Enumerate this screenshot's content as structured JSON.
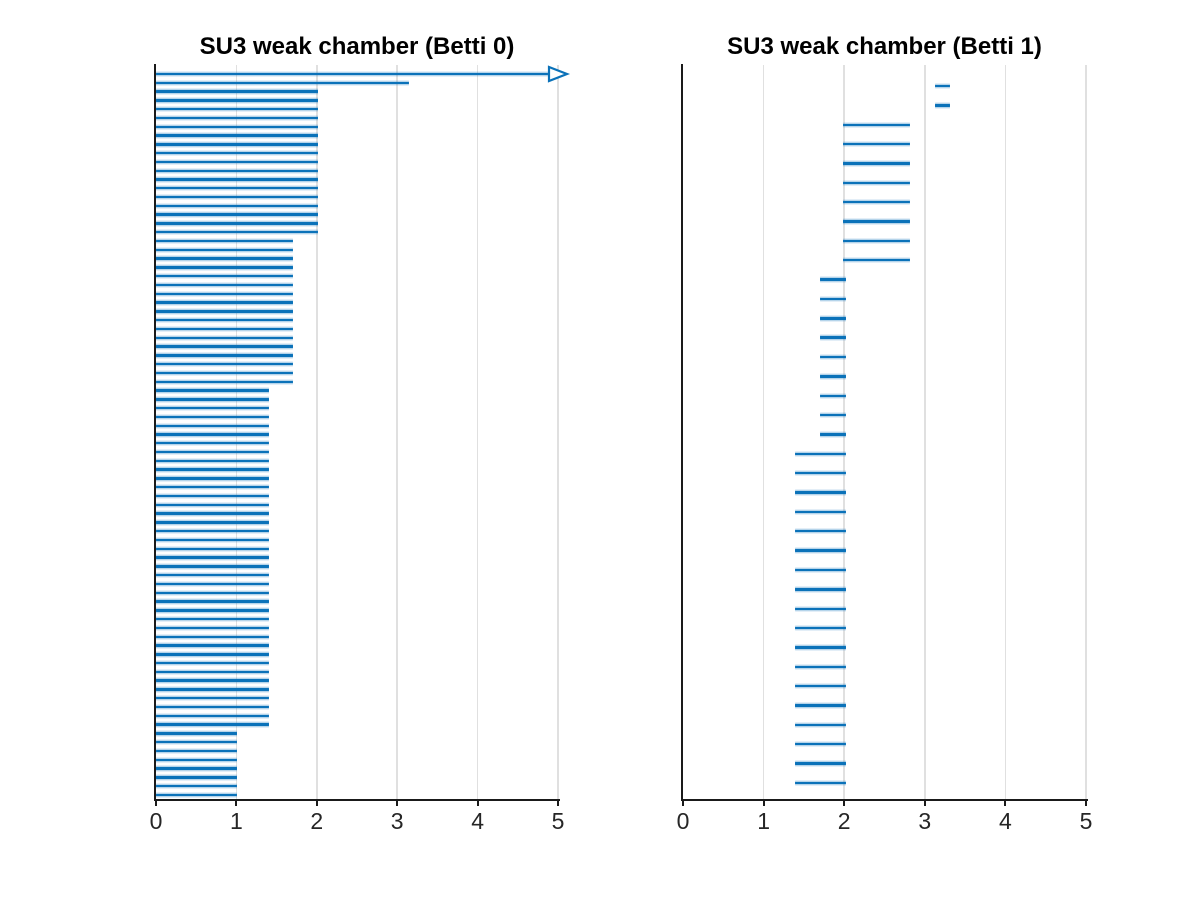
{
  "figure": {
    "background": "#ffffff",
    "bar_color": "#0b72b9",
    "bar_halo_color": "rgba(11,114,185,0.30)",
    "grid_color": "#e0e0e0",
    "axis_color": "#1a1a1a",
    "tick_label_color": "#262626",
    "title_color": "#000000"
  },
  "chart_data": [
    {
      "type": "bar",
      "subtype": "persistence-barcode",
      "title": "SU3 weak chamber (Betti 0)",
      "betti": 0,
      "xlim": [
        0,
        5
      ],
      "xticks": [
        "0",
        "1",
        "2",
        "3",
        "4",
        "5"
      ],
      "grid": true,
      "infinite_death_drawn_as": "open arrow past x=5",
      "bar_groups": [
        {
          "birth": 0,
          "death": "inf",
          "count": 1
        },
        {
          "birth": 0,
          "death": 3.15,
          "count": 1
        },
        {
          "birth": 0,
          "death": 2.02,
          "count": 17
        },
        {
          "birth": 0,
          "death": 1.71,
          "count": 17
        },
        {
          "birth": 0,
          "death": 1.41,
          "count": 39
        },
        {
          "birth": 0,
          "death": 1.01,
          "count": 8
        }
      ]
    },
    {
      "type": "bar",
      "subtype": "persistence-barcode",
      "title": "SU3 weak chamber (Betti 1)",
      "betti": 1,
      "xlim": [
        0,
        5
      ],
      "xticks": [
        "0",
        "1",
        "2",
        "3",
        "4",
        "5"
      ],
      "grid": true,
      "bar_groups": [
        {
          "birth": 3.13,
          "death": 3.31,
          "count": 2
        },
        {
          "birth": 1.99,
          "death": 2.82,
          "count": 8
        },
        {
          "birth": 1.7,
          "death": 2.02,
          "count": 9
        },
        {
          "birth": 1.39,
          "death": 2.02,
          "count": 18
        }
      ]
    }
  ]
}
